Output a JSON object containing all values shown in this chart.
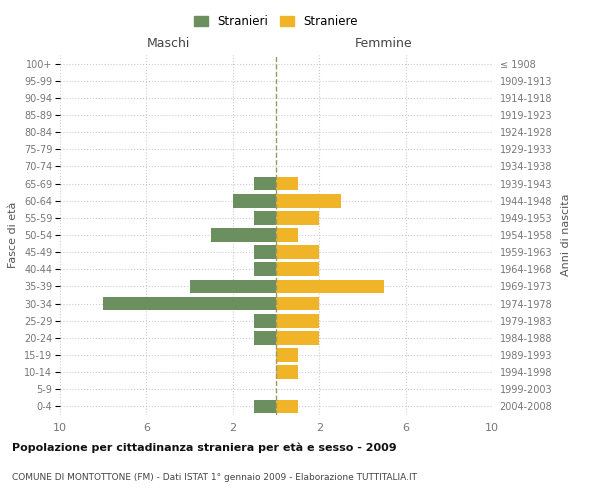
{
  "age_groups": [
    "0-4",
    "5-9",
    "10-14",
    "15-19",
    "20-24",
    "25-29",
    "30-34",
    "35-39",
    "40-44",
    "45-49",
    "50-54",
    "55-59",
    "60-64",
    "65-69",
    "70-74",
    "75-79",
    "80-84",
    "85-89",
    "90-94",
    "95-99",
    "100+"
  ],
  "birth_years": [
    "2004-2008",
    "1999-2003",
    "1994-1998",
    "1989-1993",
    "1984-1988",
    "1979-1983",
    "1974-1978",
    "1969-1973",
    "1964-1968",
    "1959-1963",
    "1954-1958",
    "1949-1953",
    "1944-1948",
    "1939-1943",
    "1934-1938",
    "1929-1933",
    "1924-1928",
    "1919-1923",
    "1914-1918",
    "1909-1913",
    "≤ 1908"
  ],
  "males": [
    1,
    0,
    0,
    0,
    1,
    1,
    8,
    4,
    1,
    1,
    3,
    1,
    2,
    1,
    0,
    0,
    0,
    0,
    0,
    0,
    0
  ],
  "females": [
    1,
    0,
    1,
    1,
    2,
    2,
    2,
    5,
    2,
    2,
    1,
    2,
    3,
    1,
    0,
    0,
    0,
    0,
    0,
    0,
    0
  ],
  "male_color": "#6b8f5e",
  "female_color": "#f0b429",
  "xlim": 10,
  "xlabel_left": "Maschi",
  "xlabel_right": "Femmine",
  "ylabel_left": "Fasce di età",
  "ylabel_right": "Anni di nascita",
  "legend_male": "Stranieri",
  "legend_female": "Straniere",
  "title": "Popolazione per cittadinanza straniera per età e sesso - 2009",
  "subtitle": "COMUNE DI MONTOTTONE (FM) - Dati ISTAT 1° gennaio 2009 - Elaborazione TUTTITALIA.IT",
  "grid_color": "#cccccc",
  "bg_color": "#ffffff",
  "bar_height": 0.8
}
